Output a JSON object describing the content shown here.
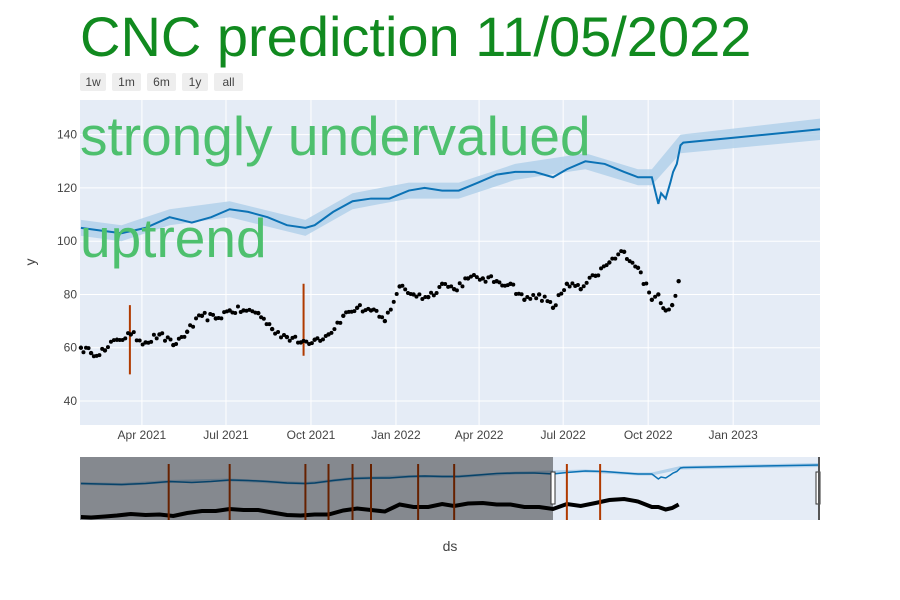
{
  "chart_data": {
    "type": "line",
    "title": "CNC prediction 11/05/2022",
    "xlabel": "ds",
    "ylabel": "y",
    "annotations": [
      "strongly undervalued",
      "uptrend"
    ],
    "range_selector": [
      "1w",
      "1m",
      "6m",
      "1y",
      "all"
    ],
    "x_ticks": [
      "Apr 2021",
      "Jul 2021",
      "Oct 2021",
      "Jan 2022",
      "Apr 2022",
      "Jul 2022",
      "Oct 2022",
      "Jan 2023"
    ],
    "y_ticks": [
      40,
      60,
      80,
      100,
      120,
      140
    ],
    "xlim": [
      "2021-01-24",
      "2023-04-05"
    ],
    "ylim": [
      31,
      153
    ],
    "grid": true,
    "colors": {
      "title": "#118a1f",
      "annotation": "#4ec06e",
      "forecast_line": "#0b72b5",
      "forecast_band": "#b3d1ea",
      "actual_points": "#000000",
      "changepoint_lines": "#b03a00",
      "plot_bg": "#e5ecf6"
    },
    "series": [
      {
        "kind": "forecast_line",
        "x": [
          "2021-01-25",
          "2021-02-15",
          "2021-03-10",
          "2021-04-05",
          "2021-05-01",
          "2021-05-25",
          "2021-06-15",
          "2021-07-05",
          "2021-07-25",
          "2021-08-15",
          "2021-09-05",
          "2021-09-25",
          "2021-10-05",
          "2021-10-25",
          "2021-11-15",
          "2021-12-05",
          "2021-12-25",
          "2022-01-15",
          "2022-02-01",
          "2022-02-20",
          "2022-03-10",
          "2022-03-31",
          "2022-04-20",
          "2022-05-10",
          "2022-05-31",
          "2022-06-20",
          "2022-07-05",
          "2022-07-25",
          "2022-08-15",
          "2022-09-05",
          "2022-09-20",
          "2022-10-05",
          "2022-10-12",
          "2022-10-15",
          "2022-10-20",
          "2022-10-25",
          "2022-10-28",
          "2022-11-01",
          "2022-11-05",
          "2022-11-08",
          "2023-04-05"
        ],
        "y": [
          105,
          104,
          103,
          105,
          109,
          107,
          109,
          112,
          111,
          109,
          106,
          105,
          106,
          111,
          115,
          116,
          116,
          119,
          120,
          119,
          119,
          122,
          125,
          126,
          126,
          124,
          127,
          130,
          129,
          126,
          124,
          124,
          114,
          118,
          116,
          122,
          126,
          129,
          136,
          137,
          142
        ]
      },
      {
        "kind": "forecast_upper",
        "x": [
          "2021-01-25",
          "2021-03-10",
          "2021-05-01",
          "2021-07-05",
          "2021-09-25",
          "2021-11-15",
          "2022-01-15",
          "2022-03-10",
          "2022-05-10",
          "2022-07-25",
          "2022-09-20",
          "2022-10-05",
          "2022-11-05",
          "2023-04-05"
        ],
        "y": [
          108,
          106,
          112,
          115,
          108,
          118,
          122,
          122,
          129,
          133,
          127,
          127,
          140,
          146
        ]
      },
      {
        "kind": "forecast_lower",
        "x": [
          "2021-01-25",
          "2021-03-10",
          "2021-05-01",
          "2021-07-05",
          "2021-09-25",
          "2021-11-15",
          "2022-01-15",
          "2022-03-10",
          "2022-05-10",
          "2022-07-25",
          "2022-09-20",
          "2022-10-05",
          "2022-11-05",
          "2023-04-05"
        ],
        "y": [
          102,
          100,
          106,
          109,
          102,
          112,
          116,
          116,
          123,
          127,
          121,
          121,
          133,
          138
        ]
      },
      {
        "kind": "actual_points",
        "x": [
          "2021-01-25",
          "2021-02-05",
          "2021-02-20",
          "2021-03-05",
          "2021-03-20",
          "2021-04-05",
          "2021-04-20",
          "2021-05-05",
          "2021-05-20",
          "2021-06-05",
          "2021-06-20",
          "2021-07-05",
          "2021-07-20",
          "2021-08-05",
          "2021-08-20",
          "2021-09-05",
          "2021-09-20",
          "2021-10-05",
          "2021-10-20",
          "2021-11-05",
          "2021-11-20",
          "2021-12-05",
          "2021-12-20",
          "2022-01-05",
          "2022-01-20",
          "2022-02-05",
          "2022-02-20",
          "2022-03-05",
          "2022-03-20",
          "2022-04-05",
          "2022-04-20",
          "2022-05-05",
          "2022-05-20",
          "2022-06-05",
          "2022-06-20",
          "2022-07-05",
          "2022-07-20",
          "2022-08-05",
          "2022-08-20",
          "2022-09-05",
          "2022-09-20",
          "2022-10-05",
          "2022-10-12",
          "2022-10-20",
          "2022-10-27",
          "2022-11-03"
        ],
        "y": [
          60,
          58,
          59,
          63,
          65,
          62,
          65,
          61,
          66,
          72,
          71,
          74,
          74,
          73,
          67,
          64,
          62,
          63,
          65,
          72,
          75,
          74,
          70,
          83,
          80,
          79,
          84,
          82,
          86,
          86,
          85,
          84,
          78,
          80,
          75,
          84,
          82,
          87,
          92,
          96,
          90,
          78,
          80,
          74,
          76,
          85
        ]
      }
    ],
    "changepoints": [
      {
        "date": "2021-03-19",
        "y_top": 76,
        "y_bottom": 50
      },
      {
        "date": "2021-09-23",
        "y_top": 84,
        "y_bottom": 57
      }
    ],
    "range_slider": {
      "selected_from": "2022-06-20",
      "changepoint_dates": [
        "2021-04-30",
        "2021-07-05",
        "2021-09-25",
        "2021-10-20",
        "2021-11-15",
        "2021-12-05",
        "2022-01-25",
        "2022-03-05",
        "2022-07-05",
        "2022-08-10"
      ]
    }
  }
}
